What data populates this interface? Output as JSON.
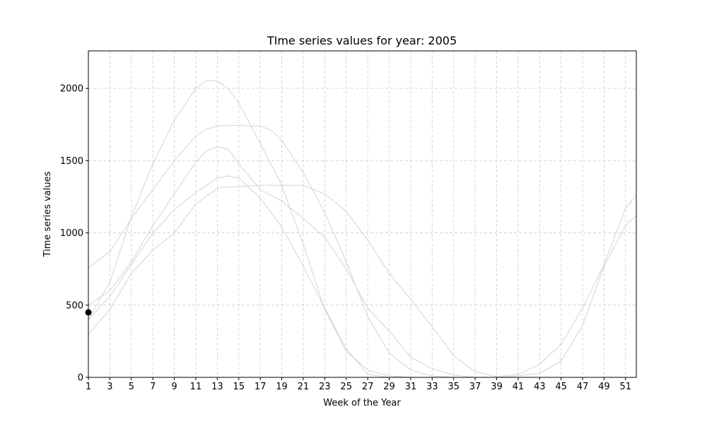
{
  "chart_data": {
    "type": "line",
    "title": "TIme series values for year: 2005",
    "xlabel": "Week of the Year",
    "ylabel": "Time series values",
    "xlim": [
      1,
      52
    ],
    "ylim": [
      0,
      2260
    ],
    "x_ticks": [
      1,
      3,
      5,
      7,
      9,
      11,
      13,
      15,
      17,
      19,
      21,
      23,
      25,
      27,
      29,
      31,
      33,
      35,
      37,
      39,
      41,
      43,
      45,
      47,
      49,
      51
    ],
    "y_ticks": [
      0,
      500,
      1000,
      1500,
      2000
    ],
    "grid": true,
    "line_color": "#d3d3d3",
    "marker_color": "#000000",
    "marker": {
      "x": 1,
      "y": 450
    },
    "series": [
      {
        "x": [
          1,
          3,
          5,
          7,
          9,
          11,
          12,
          13,
          14,
          15,
          17,
          19,
          21,
          23,
          25,
          27,
          29,
          31,
          33,
          35,
          37,
          39,
          41,
          43,
          45,
          47,
          49,
          51,
          52
        ],
        "values": [
          400,
          660,
          1110,
          1480,
          1780,
          2000,
          2055,
          2050,
          2000,
          1900,
          1620,
          1330,
          920,
          470,
          180,
          50,
          10,
          0,
          0,
          0,
          0,
          0,
          0,
          0,
          0,
          0,
          0,
          0,
          0
        ]
      },
      {
        "x": [
          1,
          3,
          5,
          7,
          9,
          11,
          12,
          13,
          15,
          16,
          17,
          18,
          19,
          21,
          23,
          25,
          27,
          29,
          31,
          33,
          35,
          37,
          39,
          41,
          43,
          45,
          47,
          49,
          51,
          52
        ],
        "values": [
          760,
          870,
          1100,
          1300,
          1500,
          1670,
          1720,
          1740,
          1745,
          1740,
          1740,
          1710,
          1640,
          1420,
          1140,
          800,
          420,
          170,
          50,
          10,
          0,
          0,
          0,
          0,
          0,
          0,
          0,
          0,
          0,
          0
        ]
      },
      {
        "x": [
          1,
          3,
          5,
          7,
          9,
          11,
          12,
          13,
          14,
          15,
          17,
          19,
          21,
          23,
          25,
          27,
          29,
          31,
          33,
          35,
          37,
          39,
          41,
          43,
          45,
          47,
          49,
          51,
          52
        ],
        "values": [
          500,
          600,
          800,
          1050,
          1270,
          1490,
          1570,
          1595,
          1580,
          1480,
          1300,
          1220,
          1100,
          970,
          750,
          480,
          320,
          140,
          60,
          15,
          0,
          0,
          0,
          0,
          0,
          0,
          0,
          0,
          0
        ]
      },
      {
        "x": [
          1,
          3,
          5,
          7,
          9,
          11,
          13,
          14,
          15,
          17,
          19,
          21,
          23,
          25,
          27,
          29,
          31,
          33,
          35,
          37,
          39,
          41,
          43,
          45,
          47,
          49,
          51,
          52
        ],
        "values": [
          300,
          470,
          720,
          880,
          1000,
          1200,
          1310,
          1320,
          1320,
          1330,
          1330,
          1330,
          1270,
          1150,
          950,
          720,
          540,
          350,
          150,
          40,
          5,
          20,
          90,
          230,
          480,
          780,
          1170,
          1260
        ]
      },
      {
        "x": [
          1,
          3,
          5,
          7,
          9,
          11,
          13,
          14,
          15,
          17,
          19,
          21,
          23,
          25,
          27,
          29,
          31,
          33,
          35,
          37,
          39,
          41,
          43,
          45,
          47,
          49,
          51,
          52
        ],
        "values": [
          400,
          560,
          780,
          1000,
          1160,
          1280,
          1380,
          1395,
          1380,
          1240,
          1040,
          770,
          480,
          200,
          20,
          0,
          0,
          0,
          0,
          0,
          0,
          10,
          30,
          110,
          360,
          770,
          1050,
          1120
        ]
      }
    ]
  }
}
